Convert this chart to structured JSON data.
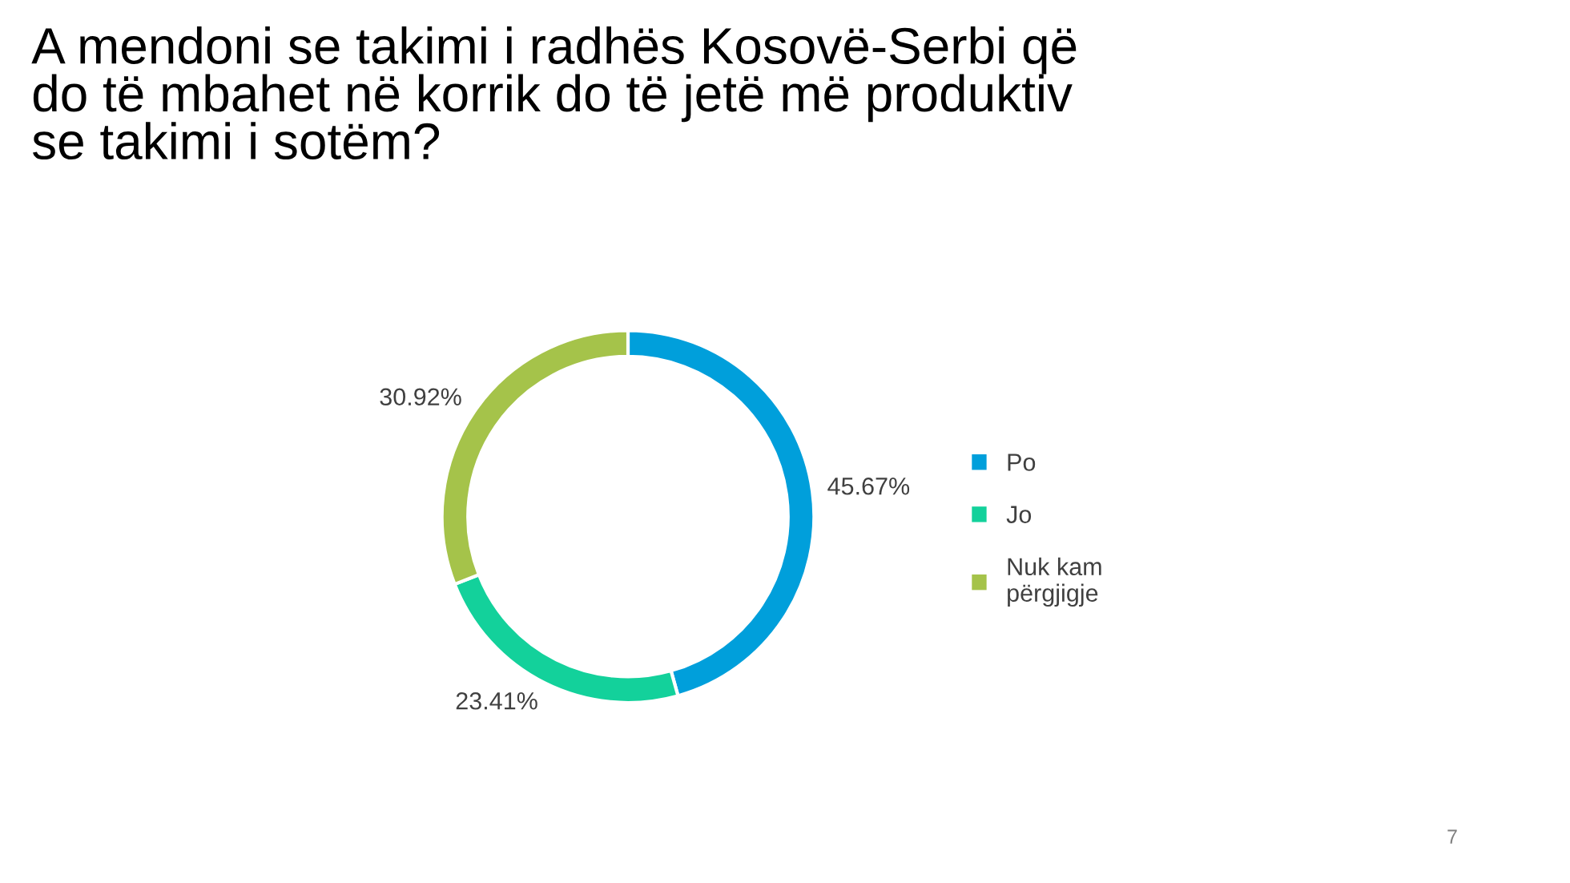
{
  "chart_data": {
    "type": "donut",
    "title": "A mendoni se takimi i radhës Kosovë-Serbi që\ndo të mbahet në korrik do të jetë më produktiv\nse takimi i sotëm?",
    "categories": [
      "Po",
      "Jo",
      "Nuk kam\npërgjigje"
    ],
    "values": [
      45.67,
      23.41,
      30.92
    ],
    "colors": [
      "#009fdb",
      "#13d19b",
      "#a5c34a"
    ],
    "value_labels": [
      "45.67%",
      "23.41%",
      "30.92%"
    ],
    "legend": "right",
    "annotations": [
      "7"
    ]
  }
}
